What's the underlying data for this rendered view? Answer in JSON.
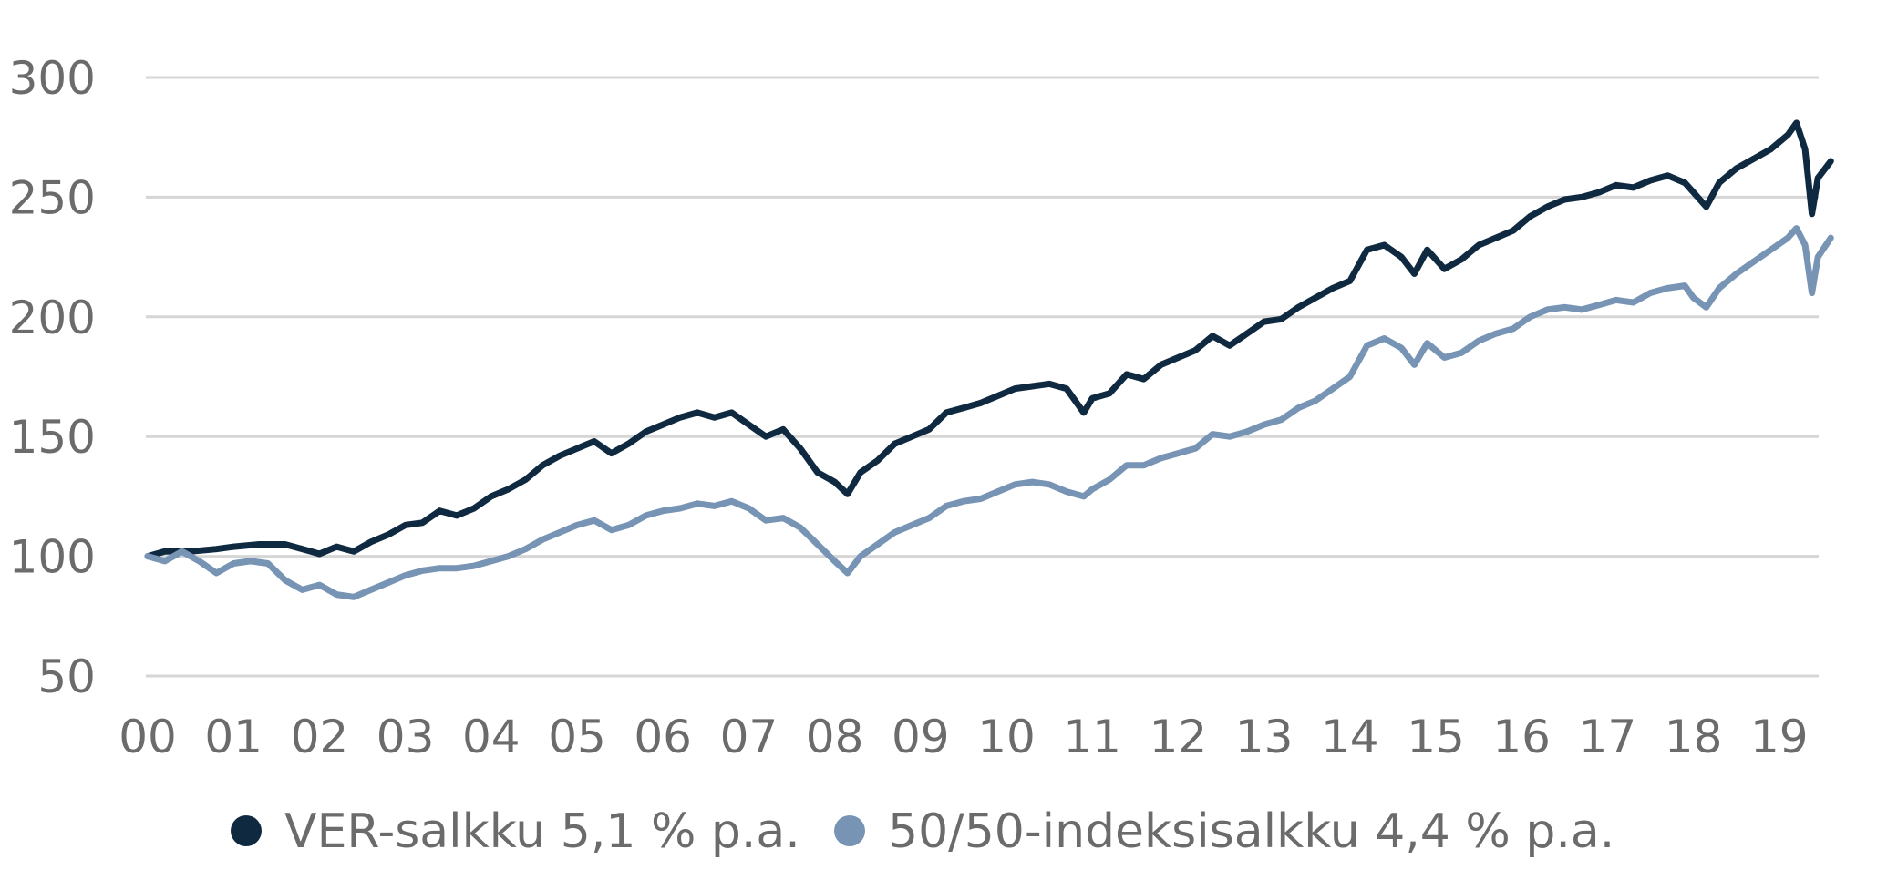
{
  "chart_data": {
    "type": "line",
    "title": "",
    "xlabel": "",
    "ylabel": "",
    "x_ticks": [
      "00",
      "01",
      "02",
      "03",
      "04",
      "05",
      "06",
      "07",
      "08",
      "09",
      "10",
      "11",
      "12",
      "13",
      "14",
      "15",
      "16",
      "17",
      "18",
      "19"
    ],
    "y_ticks": [
      50,
      100,
      150,
      200,
      250,
      300
    ],
    "ylim": [
      50,
      300
    ],
    "xlim": [
      2000.0,
      2019.6
    ],
    "grid": "horizontal",
    "legend_position": "bottom",
    "series": [
      {
        "name": "VER-salkku 5,1 % p.a.",
        "color": "#0f2a40",
        "points": [
          [
            2000.0,
            100
          ],
          [
            2000.2,
            102
          ],
          [
            2000.5,
            102
          ],
          [
            2000.8,
            103
          ],
          [
            2001.0,
            104
          ],
          [
            2001.3,
            105
          ],
          [
            2001.6,
            105
          ],
          [
            2001.9,
            102
          ],
          [
            2002.0,
            101
          ],
          [
            2002.2,
            104
          ],
          [
            2002.4,
            102
          ],
          [
            2002.6,
            106
          ],
          [
            2002.8,
            109
          ],
          [
            2003.0,
            113
          ],
          [
            2003.2,
            114
          ],
          [
            2003.4,
            119
          ],
          [
            2003.6,
            117
          ],
          [
            2003.8,
            120
          ],
          [
            2004.0,
            125
          ],
          [
            2004.2,
            128
          ],
          [
            2004.4,
            132
          ],
          [
            2004.6,
            138
          ],
          [
            2004.8,
            142
          ],
          [
            2005.0,
            145
          ],
          [
            2005.2,
            148
          ],
          [
            2005.4,
            143
          ],
          [
            2005.6,
            147
          ],
          [
            2005.8,
            152
          ],
          [
            2006.0,
            155
          ],
          [
            2006.2,
            158
          ],
          [
            2006.4,
            160
          ],
          [
            2006.6,
            158
          ],
          [
            2006.8,
            160
          ],
          [
            2007.0,
            155
          ],
          [
            2007.2,
            150
          ],
          [
            2007.4,
            153
          ],
          [
            2007.6,
            145
          ],
          [
            2007.8,
            135
          ],
          [
            2008.0,
            131
          ],
          [
            2008.15,
            126
          ],
          [
            2008.3,
            135
          ],
          [
            2008.5,
            140
          ],
          [
            2008.7,
            147
          ],
          [
            2008.9,
            150
          ],
          [
            2009.1,
            153
          ],
          [
            2009.3,
            160
          ],
          [
            2009.5,
            162
          ],
          [
            2009.7,
            164
          ],
          [
            2009.9,
            167
          ],
          [
            2010.1,
            170
          ],
          [
            2010.3,
            171
          ],
          [
            2010.5,
            172
          ],
          [
            2010.7,
            170
          ],
          [
            2010.9,
            160
          ],
          [
            2011.0,
            166
          ],
          [
            2011.2,
            168
          ],
          [
            2011.4,
            176
          ],
          [
            2011.6,
            174
          ],
          [
            2011.8,
            180
          ],
          [
            2012.0,
            183
          ],
          [
            2012.2,
            186
          ],
          [
            2012.4,
            192
          ],
          [
            2012.6,
            188
          ],
          [
            2012.8,
            193
          ],
          [
            2013.0,
            198
          ],
          [
            2013.2,
            199
          ],
          [
            2013.4,
            204
          ],
          [
            2013.6,
            208
          ],
          [
            2013.8,
            212
          ],
          [
            2014.0,
            215
          ],
          [
            2014.2,
            228
          ],
          [
            2014.4,
            230
          ],
          [
            2014.6,
            225
          ],
          [
            2014.75,
            218
          ],
          [
            2014.9,
            228
          ],
          [
            2015.1,
            220
          ],
          [
            2015.3,
            224
          ],
          [
            2015.5,
            230
          ],
          [
            2015.7,
            233
          ],
          [
            2015.9,
            236
          ],
          [
            2016.1,
            242
          ],
          [
            2016.3,
            246
          ],
          [
            2016.5,
            249
          ],
          [
            2016.7,
            250
          ],
          [
            2016.9,
            252
          ],
          [
            2017.1,
            255
          ],
          [
            2017.3,
            254
          ],
          [
            2017.5,
            257
          ],
          [
            2017.7,
            259
          ],
          [
            2017.9,
            256
          ],
          [
            2018.0,
            252
          ],
          [
            2018.15,
            246
          ],
          [
            2018.3,
            256
          ],
          [
            2018.5,
            262
          ],
          [
            2018.7,
            266
          ],
          [
            2018.9,
            270
          ],
          [
            2019.1,
            276
          ],
          [
            2019.2,
            281
          ],
          [
            2019.3,
            270
          ],
          [
            2019.38,
            243
          ],
          [
            2019.45,
            258
          ],
          [
            2019.6,
            265
          ]
        ]
      },
      {
        "name": "50/50-indeksisalkku 4,4 % p.a.",
        "color": "#7794b5",
        "points": [
          [
            2000.0,
            100
          ],
          [
            2000.2,
            98
          ],
          [
            2000.4,
            102
          ],
          [
            2000.6,
            98
          ],
          [
            2000.8,
            93
          ],
          [
            2001.0,
            97
          ],
          [
            2001.2,
            98
          ],
          [
            2001.4,
            97
          ],
          [
            2001.6,
            90
          ],
          [
            2001.8,
            86
          ],
          [
            2002.0,
            88
          ],
          [
            2002.2,
            84
          ],
          [
            2002.4,
            83
          ],
          [
            2002.6,
            86
          ],
          [
            2002.8,
            89
          ],
          [
            2003.0,
            92
          ],
          [
            2003.2,
            94
          ],
          [
            2003.4,
            95
          ],
          [
            2003.6,
            95
          ],
          [
            2003.8,
            96
          ],
          [
            2004.0,
            98
          ],
          [
            2004.2,
            100
          ],
          [
            2004.4,
            103
          ],
          [
            2004.6,
            107
          ],
          [
            2004.8,
            110
          ],
          [
            2005.0,
            113
          ],
          [
            2005.2,
            115
          ],
          [
            2005.4,
            111
          ],
          [
            2005.6,
            113
          ],
          [
            2005.8,
            117
          ],
          [
            2006.0,
            119
          ],
          [
            2006.2,
            120
          ],
          [
            2006.4,
            122
          ],
          [
            2006.6,
            121
          ],
          [
            2006.8,
            123
          ],
          [
            2007.0,
            120
          ],
          [
            2007.2,
            115
          ],
          [
            2007.4,
            116
          ],
          [
            2007.6,
            112
          ],
          [
            2007.8,
            105
          ],
          [
            2008.0,
            98
          ],
          [
            2008.15,
            93
          ],
          [
            2008.3,
            100
          ],
          [
            2008.5,
            105
          ],
          [
            2008.7,
            110
          ],
          [
            2008.9,
            113
          ],
          [
            2009.1,
            116
          ],
          [
            2009.3,
            121
          ],
          [
            2009.5,
            123
          ],
          [
            2009.7,
            124
          ],
          [
            2009.9,
            127
          ],
          [
            2010.1,
            130
          ],
          [
            2010.3,
            131
          ],
          [
            2010.5,
            130
          ],
          [
            2010.7,
            127
          ],
          [
            2010.9,
            125
          ],
          [
            2011.0,
            128
          ],
          [
            2011.2,
            132
          ],
          [
            2011.4,
            138
          ],
          [
            2011.6,
            138
          ],
          [
            2011.8,
            141
          ],
          [
            2012.0,
            143
          ],
          [
            2012.2,
            145
          ],
          [
            2012.4,
            151
          ],
          [
            2012.6,
            150
          ],
          [
            2012.8,
            152
          ],
          [
            2013.0,
            155
          ],
          [
            2013.2,
            157
          ],
          [
            2013.4,
            162
          ],
          [
            2013.6,
            165
          ],
          [
            2013.8,
            170
          ],
          [
            2014.0,
            175
          ],
          [
            2014.2,
            188
          ],
          [
            2014.4,
            191
          ],
          [
            2014.6,
            187
          ],
          [
            2014.75,
            180
          ],
          [
            2014.9,
            189
          ],
          [
            2015.1,
            183
          ],
          [
            2015.3,
            185
          ],
          [
            2015.5,
            190
          ],
          [
            2015.7,
            193
          ],
          [
            2015.9,
            195
          ],
          [
            2016.1,
            200
          ],
          [
            2016.3,
            203
          ],
          [
            2016.5,
            204
          ],
          [
            2016.7,
            203
          ],
          [
            2016.9,
            205
          ],
          [
            2017.1,
            207
          ],
          [
            2017.3,
            206
          ],
          [
            2017.5,
            210
          ],
          [
            2017.7,
            212
          ],
          [
            2017.9,
            213
          ],
          [
            2018.0,
            208
          ],
          [
            2018.15,
            204
          ],
          [
            2018.3,
            212
          ],
          [
            2018.5,
            218
          ],
          [
            2018.7,
            223
          ],
          [
            2018.9,
            228
          ],
          [
            2019.1,
            233
          ],
          [
            2019.2,
            237
          ],
          [
            2019.3,
            230
          ],
          [
            2019.38,
            210
          ],
          [
            2019.45,
            225
          ],
          [
            2019.6,
            233
          ]
        ]
      }
    ]
  }
}
